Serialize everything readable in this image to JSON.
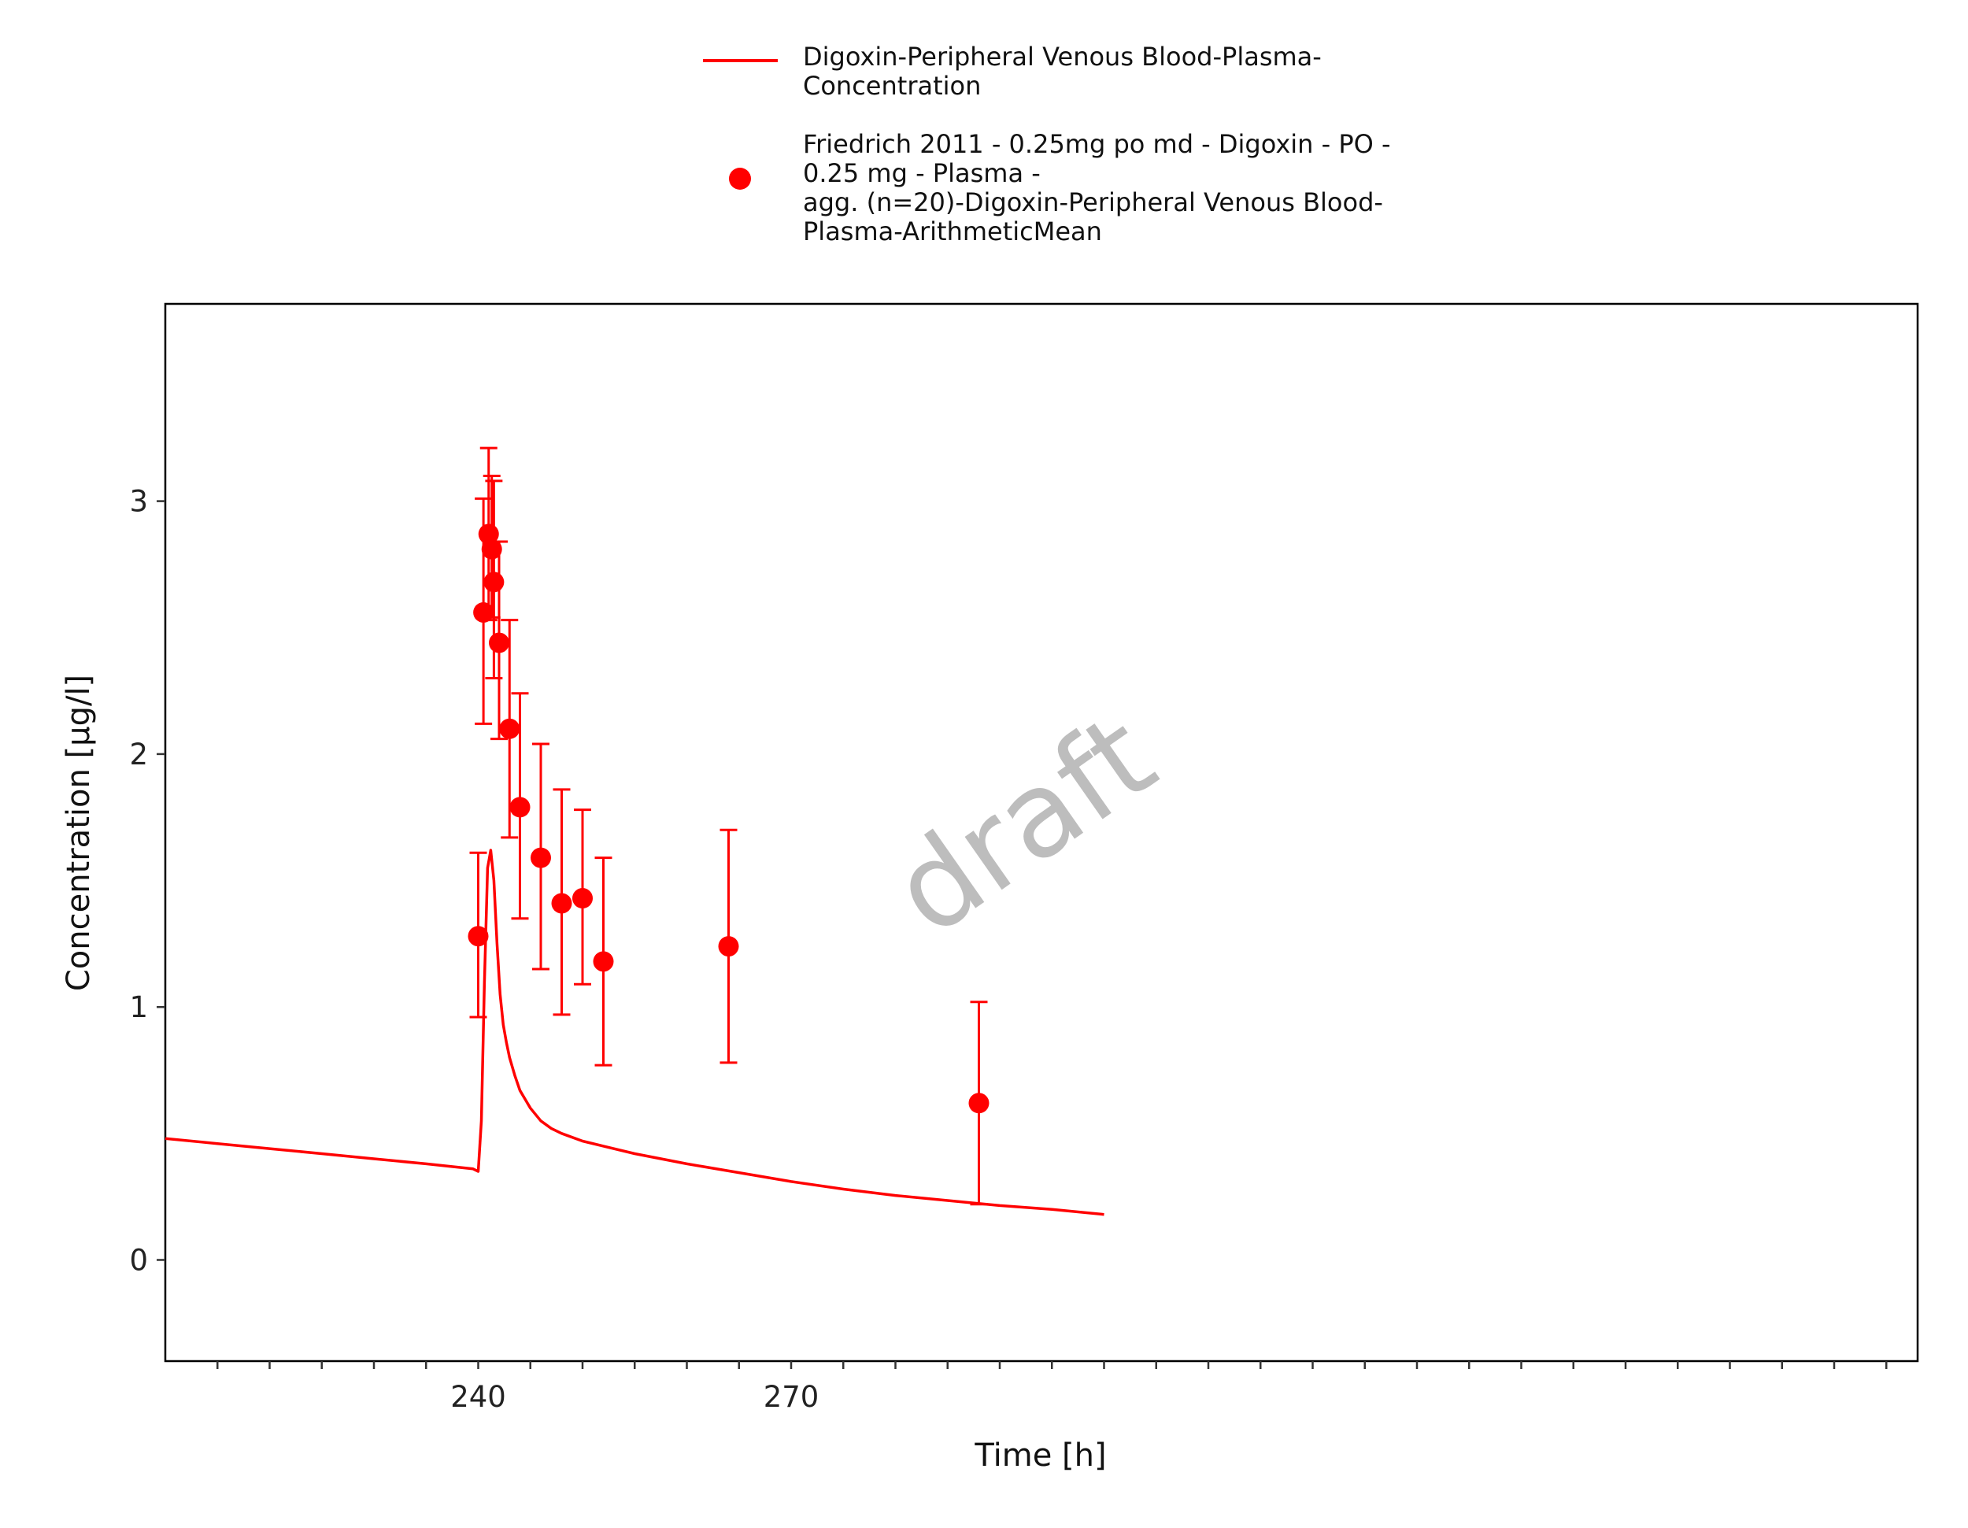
{
  "chart_data": {
    "type": "line",
    "title": "",
    "xlabel": "Time [h]",
    "ylabel": "Concentration [µg/l]",
    "xlim": [
      210,
      378
    ],
    "ylim": [
      -0.4,
      3.78
    ],
    "x_ticks": [
      240,
      270
    ],
    "y_ticks": [
      0,
      1,
      2,
      3
    ],
    "grid": false,
    "legend_position": "top",
    "watermark": "draft",
    "color": "#ff0000",
    "series": [
      {
        "name": "Digoxin-Peripheral Venous Blood-Plasma-\nConcentration",
        "kind": "line",
        "x": [
          210,
          215,
          220,
          225,
          230,
          235,
          239.5,
          240,
          240.3,
          240.6,
          240.9,
          241.2,
          241.5,
          241.8,
          242.1,
          242.4,
          242.7,
          243.0,
          243.5,
          244.0,
          245.0,
          246.0,
          247.0,
          248.0,
          250.0,
          252.0,
          255.0,
          260.0,
          265.0,
          270.0,
          275.0,
          280.0,
          285.0,
          290.0,
          295.0,
          300.0
        ],
        "y": [
          0.48,
          0.46,
          0.44,
          0.42,
          0.4,
          0.38,
          0.36,
          0.35,
          0.55,
          1.1,
          1.55,
          1.62,
          1.5,
          1.25,
          1.05,
          0.93,
          0.86,
          0.8,
          0.73,
          0.67,
          0.6,
          0.55,
          0.52,
          0.5,
          0.47,
          0.45,
          0.42,
          0.38,
          0.345,
          0.31,
          0.28,
          0.255,
          0.235,
          0.215,
          0.2,
          0.18
        ]
      },
      {
        "name": "Friedrich 2011 - 0.25mg po md - Digoxin - PO -\n0.25 mg - Plasma -\nagg. (n=20)-Digoxin-Peripheral Venous Blood-\nPlasma-ArithmeticMean",
        "kind": "scatter_errorbar",
        "x": [
          240.0,
          240.5,
          241.0,
          241.3,
          241.5,
          242.0,
          243.0,
          244.0,
          246.0,
          248.0,
          250.0,
          252.0,
          264.0,
          288.0
        ],
        "y": [
          1.28,
          2.56,
          2.87,
          2.81,
          2.68,
          2.44,
          2.1,
          1.79,
          1.59,
          1.41,
          1.43,
          1.18,
          1.24,
          0.62
        ],
        "y_lower": [
          0.96,
          2.12,
          2.53,
          2.54,
          2.3,
          2.06,
          1.67,
          1.35,
          1.15,
          0.97,
          1.09,
          0.77,
          0.78,
          0.22
        ],
        "y_upper": [
          1.61,
          3.01,
          3.21,
          3.1,
          3.08,
          2.84,
          2.53,
          2.24,
          2.04,
          1.86,
          1.78,
          1.59,
          1.7,
          1.02
        ]
      }
    ]
  }
}
